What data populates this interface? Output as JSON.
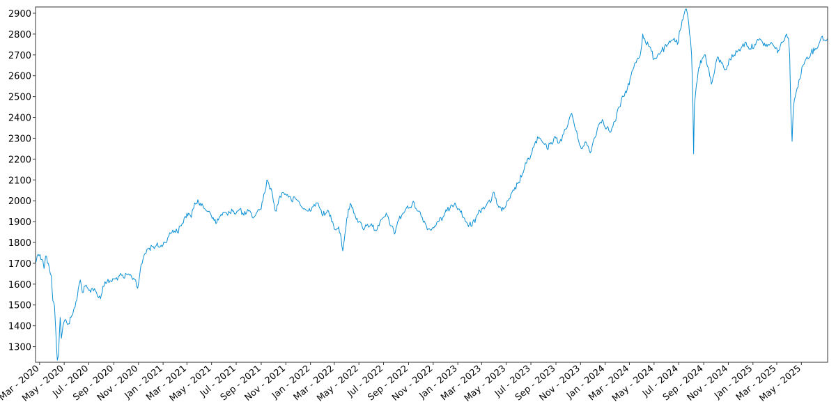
{
  "chart_data": {
    "type": "line",
    "title": "",
    "xlabel": "",
    "ylabel": "",
    "grid": false,
    "legend": "none",
    "x_range": [
      "2020-02-20",
      "2025-07-05"
    ],
    "ylim": [
      1225,
      2930
    ],
    "yticks": [
      1300,
      1400,
      1500,
      1600,
      1700,
      1800,
      1900,
      2000,
      2100,
      2200,
      2300,
      2400,
      2500,
      2600,
      2700,
      2800,
      2900
    ],
    "xticks": [
      {
        "date": "2020-03-01",
        "label": "Mar - 2020"
      },
      {
        "date": "2020-05-01",
        "label": "May - 2020"
      },
      {
        "date": "2020-07-01",
        "label": "Jul - 2020"
      },
      {
        "date": "2020-09-01",
        "label": "Sep - 2020"
      },
      {
        "date": "2020-11-01",
        "label": "Nov - 2020"
      },
      {
        "date": "2021-01-01",
        "label": "Jan - 2021"
      },
      {
        "date": "2021-03-01",
        "label": "Mar - 2021"
      },
      {
        "date": "2021-05-01",
        "label": "May - 2021"
      },
      {
        "date": "2021-07-01",
        "label": "Jul - 2021"
      },
      {
        "date": "2021-09-01",
        "label": "Sep - 2021"
      },
      {
        "date": "2021-11-01",
        "label": "Nov - 2021"
      },
      {
        "date": "2022-01-01",
        "label": "Jan - 2022"
      },
      {
        "date": "2022-03-01",
        "label": "Mar - 2022"
      },
      {
        "date": "2022-05-01",
        "label": "May - 2022"
      },
      {
        "date": "2022-07-01",
        "label": "Jul - 2022"
      },
      {
        "date": "2022-09-01",
        "label": "Sep - 2022"
      },
      {
        "date": "2022-11-01",
        "label": "Nov - 2022"
      },
      {
        "date": "2023-01-01",
        "label": "Jan - 2023"
      },
      {
        "date": "2023-03-01",
        "label": "Mar - 2023"
      },
      {
        "date": "2023-05-01",
        "label": "May - 2023"
      },
      {
        "date": "2023-07-01",
        "label": "Jul - 2023"
      },
      {
        "date": "2023-09-01",
        "label": "Sep - 2023"
      },
      {
        "date": "2023-11-01",
        "label": "Nov - 2023"
      },
      {
        "date": "2024-01-01",
        "label": "Jan - 2024"
      },
      {
        "date": "2024-03-01",
        "label": "Mar - 2024"
      },
      {
        "date": "2024-05-01",
        "label": "May - 2024"
      },
      {
        "date": "2024-07-01",
        "label": "Jul - 2024"
      },
      {
        "date": "2024-09-01",
        "label": "Sep - 2024"
      },
      {
        "date": "2024-11-01",
        "label": "Nov - 2024"
      },
      {
        "date": "2025-01-01",
        "label": "Jan - 2025"
      },
      {
        "date": "2025-03-01",
        "label": "Mar - 2025"
      },
      {
        "date": "2025-05-01",
        "label": "May - 2025"
      }
    ],
    "series": [
      {
        "color": "#0a8fd4",
        "points": [
          [
            "2020-02-20",
            1700
          ],
          [
            "2020-02-24",
            1735
          ],
          [
            "2020-03-02",
            1742
          ],
          [
            "2020-03-09",
            1715
          ],
          [
            "2020-03-12",
            1675
          ],
          [
            "2020-03-16",
            1735
          ],
          [
            "2020-03-23",
            1700
          ],
          [
            "2020-03-30",
            1640
          ],
          [
            "2020-04-03",
            1520
          ],
          [
            "2020-04-07",
            1495
          ],
          [
            "2020-04-10",
            1380
          ],
          [
            "2020-04-14",
            1235
          ],
          [
            "2020-04-17",
            1260
          ],
          [
            "2020-04-21",
            1440
          ],
          [
            "2020-04-24",
            1340
          ],
          [
            "2020-04-28",
            1400
          ],
          [
            "2020-05-05",
            1430
          ],
          [
            "2020-05-12",
            1410
          ],
          [
            "2020-05-20",
            1450
          ],
          [
            "2020-05-28",
            1490
          ],
          [
            "2020-06-05",
            1580
          ],
          [
            "2020-06-10",
            1620
          ],
          [
            "2020-06-15",
            1560
          ],
          [
            "2020-06-22",
            1590
          ],
          [
            "2020-07-01",
            1570
          ],
          [
            "2020-07-10",
            1580
          ],
          [
            "2020-07-20",
            1560
          ],
          [
            "2020-07-30",
            1530
          ],
          [
            "2020-08-05",
            1590
          ],
          [
            "2020-08-15",
            1610
          ],
          [
            "2020-08-25",
            1615
          ],
          [
            "2020-09-05",
            1625
          ],
          [
            "2020-09-15",
            1640
          ],
          [
            "2020-09-25",
            1630
          ],
          [
            "2020-10-05",
            1645
          ],
          [
            "2020-10-15",
            1635
          ],
          [
            "2020-10-25",
            1620
          ],
          [
            "2020-10-30",
            1580
          ],
          [
            "2020-11-05",
            1660
          ],
          [
            "2020-11-15",
            1740
          ],
          [
            "2020-11-25",
            1770
          ],
          [
            "2020-12-05",
            1780
          ],
          [
            "2020-12-15",
            1785
          ],
          [
            "2020-12-25",
            1780
          ],
          [
            "2021-01-05",
            1800
          ],
          [
            "2021-01-15",
            1830
          ],
          [
            "2021-01-25",
            1860
          ],
          [
            "2021-02-05",
            1850
          ],
          [
            "2021-02-15",
            1880
          ],
          [
            "2021-02-25",
            1925
          ],
          [
            "2021-03-05",
            1940
          ],
          [
            "2021-03-12",
            1920
          ],
          [
            "2021-03-20",
            1990
          ],
          [
            "2021-03-28",
            2005
          ],
          [
            "2021-04-05",
            1975
          ],
          [
            "2021-04-15",
            1960
          ],
          [
            "2021-04-25",
            1950
          ],
          [
            "2021-05-05",
            1920
          ],
          [
            "2021-05-12",
            1890
          ],
          [
            "2021-05-20",
            1920
          ],
          [
            "2021-06-01",
            1945
          ],
          [
            "2021-06-10",
            1930
          ],
          [
            "2021-06-20",
            1960
          ],
          [
            "2021-07-01",
            1940
          ],
          [
            "2021-07-10",
            1960
          ],
          [
            "2021-07-20",
            1930
          ],
          [
            "2021-08-01",
            1950
          ],
          [
            "2021-08-10",
            1920
          ],
          [
            "2021-08-20",
            1940
          ],
          [
            "2021-08-30",
            1960
          ],
          [
            "2021-09-05",
            2000
          ],
          [
            "2021-09-10",
            2040
          ],
          [
            "2021-09-15",
            2100
          ],
          [
            "2021-09-20",
            2080
          ],
          [
            "2021-09-25",
            2060
          ],
          [
            "2021-10-01",
            2000
          ],
          [
            "2021-10-08",
            1950
          ],
          [
            "2021-10-15",
            2010
          ],
          [
            "2021-10-25",
            2040
          ],
          [
            "2021-11-05",
            2030
          ],
          [
            "2021-11-15",
            2000
          ],
          [
            "2021-11-25",
            2010
          ],
          [
            "2021-12-05",
            1990
          ],
          [
            "2021-12-15",
            1960
          ],
          [
            "2021-12-25",
            1950
          ],
          [
            "2022-01-05",
            1970
          ],
          [
            "2022-01-15",
            1990
          ],
          [
            "2022-01-25",
            1960
          ],
          [
            "2022-02-05",
            1930
          ],
          [
            "2022-02-15",
            1950
          ],
          [
            "2022-02-25",
            1900
          ],
          [
            "2022-03-05",
            1860
          ],
          [
            "2022-03-12",
            1875
          ],
          [
            "2022-03-18",
            1820
          ],
          [
            "2022-03-22",
            1760
          ],
          [
            "2022-03-28",
            1850
          ],
          [
            "2022-04-05",
            1960
          ],
          [
            "2022-04-12",
            1980
          ],
          [
            "2022-04-20",
            1940
          ],
          [
            "2022-05-01",
            1900
          ],
          [
            "2022-05-10",
            1870
          ],
          [
            "2022-05-20",
            1880
          ],
          [
            "2022-06-01",
            1890
          ],
          [
            "2022-06-10",
            1860
          ],
          [
            "2022-06-20",
            1880
          ],
          [
            "2022-07-01",
            1920
          ],
          [
            "2022-07-10",
            1930
          ],
          [
            "2022-07-20",
            1880
          ],
          [
            "2022-07-28",
            1840
          ],
          [
            "2022-08-05",
            1900
          ],
          [
            "2022-08-15",
            1930
          ],
          [
            "2022-08-25",
            1960
          ],
          [
            "2022-09-05",
            1970
          ],
          [
            "2022-09-15",
            1990
          ],
          [
            "2022-09-25",
            1950
          ],
          [
            "2022-10-05",
            1920
          ],
          [
            "2022-10-15",
            1880
          ],
          [
            "2022-10-25",
            1860
          ],
          [
            "2022-11-05",
            1880
          ],
          [
            "2022-11-15",
            1900
          ],
          [
            "2022-11-25",
            1920
          ],
          [
            "2022-12-05",
            1950
          ],
          [
            "2022-12-15",
            1980
          ],
          [
            "2022-12-25",
            1990
          ],
          [
            "2023-01-05",
            1960
          ],
          [
            "2023-01-15",
            1920
          ],
          [
            "2023-01-25",
            1890
          ],
          [
            "2023-02-05",
            1880
          ],
          [
            "2023-02-15",
            1920
          ],
          [
            "2023-02-25",
            1950
          ],
          [
            "2023-03-05",
            1970
          ],
          [
            "2023-03-15",
            1990
          ],
          [
            "2023-03-25",
            2000
          ],
          [
            "2023-04-01",
            2040
          ],
          [
            "2023-04-10",
            1980
          ],
          [
            "2023-04-20",
            1950
          ],
          [
            "2023-05-01",
            1980
          ],
          [
            "2023-05-10",
            2010
          ],
          [
            "2023-05-20",
            2050
          ],
          [
            "2023-06-01",
            2090
          ],
          [
            "2023-06-10",
            2130
          ],
          [
            "2023-06-20",
            2180
          ],
          [
            "2023-07-01",
            2220
          ],
          [
            "2023-07-10",
            2270
          ],
          [
            "2023-07-20",
            2300
          ],
          [
            "2023-07-30",
            2280
          ],
          [
            "2023-08-10",
            2250
          ],
          [
            "2023-08-20",
            2280
          ],
          [
            "2023-09-01",
            2300
          ],
          [
            "2023-09-10",
            2280
          ],
          [
            "2023-09-20",
            2320
          ],
          [
            "2023-09-30",
            2360
          ],
          [
            "2023-10-05",
            2400
          ],
          [
            "2023-10-10",
            2420
          ],
          [
            "2023-10-15",
            2380
          ],
          [
            "2023-10-25",
            2300
          ],
          [
            "2023-11-05",
            2250
          ],
          [
            "2023-11-15",
            2280
          ],
          [
            "2023-11-25",
            2230
          ],
          [
            "2023-12-05",
            2300
          ],
          [
            "2023-12-15",
            2360
          ],
          [
            "2023-12-25",
            2390
          ],
          [
            "2024-01-05",
            2350
          ],
          [
            "2024-01-15",
            2330
          ],
          [
            "2024-01-25",
            2380
          ],
          [
            "2024-02-05",
            2450
          ],
          [
            "2024-02-15",
            2500
          ],
          [
            "2024-02-25",
            2540
          ],
          [
            "2024-03-05",
            2600
          ],
          [
            "2024-03-12",
            2640
          ],
          [
            "2024-03-20",
            2680
          ],
          [
            "2024-03-28",
            2700
          ],
          [
            "2024-04-03",
            2800
          ],
          [
            "2024-04-10",
            2760
          ],
          [
            "2024-04-20",
            2740
          ],
          [
            "2024-05-01",
            2680
          ],
          [
            "2024-05-10",
            2700
          ],
          [
            "2024-05-20",
            2720
          ],
          [
            "2024-06-01",
            2740
          ],
          [
            "2024-06-10",
            2760
          ],
          [
            "2024-06-20",
            2780
          ],
          [
            "2024-06-28",
            2750
          ],
          [
            "2024-07-05",
            2820
          ],
          [
            "2024-07-12",
            2870
          ],
          [
            "2024-07-18",
            2920
          ],
          [
            "2024-07-24",
            2880
          ],
          [
            "2024-07-30",
            2780
          ],
          [
            "2024-08-02",
            2700
          ],
          [
            "2024-08-05",
            2510
          ],
          [
            "2024-08-07",
            2225
          ],
          [
            "2024-08-09",
            2460
          ],
          [
            "2024-08-14",
            2560
          ],
          [
            "2024-08-20",
            2640
          ],
          [
            "2024-08-28",
            2680
          ],
          [
            "2024-09-05",
            2700
          ],
          [
            "2024-09-12",
            2640
          ],
          [
            "2024-09-20",
            2560
          ],
          [
            "2024-09-28",
            2620
          ],
          [
            "2024-10-05",
            2690
          ],
          [
            "2024-10-15",
            2660
          ],
          [
            "2024-10-25",
            2630
          ],
          [
            "2024-11-05",
            2680
          ],
          [
            "2024-11-15",
            2700
          ],
          [
            "2024-11-25",
            2720
          ],
          [
            "2024-12-05",
            2740
          ],
          [
            "2024-12-15",
            2760
          ],
          [
            "2024-12-25",
            2730
          ],
          [
            "2025-01-05",
            2750
          ],
          [
            "2025-01-15",
            2770
          ],
          [
            "2025-01-25",
            2760
          ],
          [
            "2025-02-05",
            2740
          ],
          [
            "2025-02-15",
            2760
          ],
          [
            "2025-02-25",
            2730
          ],
          [
            "2025-03-05",
            2720
          ],
          [
            "2025-03-15",
            2760
          ],
          [
            "2025-03-25",
            2800
          ],
          [
            "2025-03-30",
            2780
          ],
          [
            "2025-04-02",
            2700
          ],
          [
            "2025-04-05",
            2420
          ],
          [
            "2025-04-08",
            2285
          ],
          [
            "2025-04-11",
            2440
          ],
          [
            "2025-04-18",
            2520
          ],
          [
            "2025-04-25",
            2580
          ],
          [
            "2025-05-05",
            2650
          ],
          [
            "2025-05-15",
            2690
          ],
          [
            "2025-05-25",
            2710
          ],
          [
            "2025-06-05",
            2730
          ],
          [
            "2025-06-15",
            2760
          ],
          [
            "2025-06-22",
            2790
          ],
          [
            "2025-06-28",
            2770
          ],
          [
            "2025-07-05",
            2780
          ]
        ]
      }
    ]
  }
}
